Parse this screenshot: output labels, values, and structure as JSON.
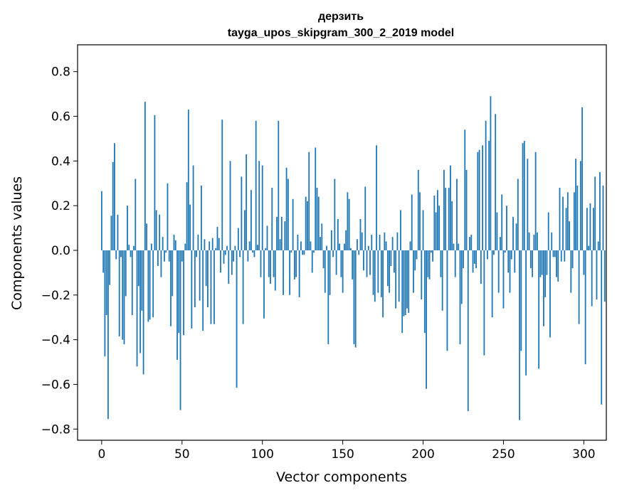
{
  "chart_data": {
    "type": "bar",
    "title_line1": "дерзить",
    "title_line2": "tayga_upos_skipgram_300_2_2019 model",
    "xlabel": "Vector components",
    "ylabel": "Components values",
    "xlim": [
      -15,
      314
    ],
    "ylim": [
      -0.85,
      0.92
    ],
    "xticks": [
      0,
      50,
      100,
      150,
      200,
      250,
      300
    ],
    "xtick_labels": [
      "0",
      "50",
      "100",
      "150",
      "200",
      "250",
      "300"
    ],
    "yticks": [
      -0.8,
      -0.6,
      -0.4,
      -0.2,
      0.0,
      0.2,
      0.4,
      0.6,
      0.8
    ],
    "ytick_labels": [
      "−0.8",
      "−0.6",
      "−0.4",
      "−0.2",
      "0.0",
      "0.2",
      "0.4",
      "0.6",
      "0.8"
    ],
    "bar_color": "#1f77b4",
    "values": [
      0.265,
      -0.1,
      -0.475,
      -0.29,
      -0.755,
      -0.155,
      0.155,
      0.395,
      0.48,
      -0.04,
      0.16,
      -0.385,
      -0.03,
      -0.4,
      -0.42,
      -0.205,
      0.2,
      0.025,
      -0.03,
      -0.29,
      0.02,
      0.32,
      -0.52,
      -0.16,
      -0.46,
      -0.27,
      -0.555,
      0.665,
      0.12,
      -0.32,
      -0.31,
      0.03,
      -0.3,
      0.605,
      0.18,
      -0.07,
      0.16,
      -0.12,
      0.06,
      -0.05,
      -0.01,
      0.3,
      -0.05,
      -0.34,
      -0.205,
      0.07,
      0.045,
      -0.49,
      -0.37,
      -0.715,
      -0.05,
      -0.38,
      0.03,
      0.305,
      0.63,
      0.205,
      -0.35,
      0.38,
      -0.255,
      -0.03,
      0.07,
      -0.225,
      0.29,
      -0.36,
      0.05,
      -0.16,
      -0.255,
      0.04,
      -0.33,
      0.055,
      -0.33,
      0.01,
      0.105,
      0.055,
      -0.1,
      0.585,
      -0.06,
      -0.02,
      0.02,
      -0.15,
      0.4,
      -0.11,
      -0.05,
      0.02,
      -0.615,
      0.1,
      -0.03,
      0.33,
      -0.33,
      0.18,
      0.43,
      -0.05,
      0.04,
      0.27,
      -0.01,
      -0.03,
      0.58,
      0.025,
      0.4,
      -0.12,
      0.38,
      -0.305,
      0.01,
      0.11,
      -0.12,
      -0.15,
      0.28,
      -0.12,
      -0.18,
      0.15,
      0.58,
      0.05,
      0.15,
      -0.2,
      0.13,
      0.37,
      0.32,
      -0.2,
      -0.01,
      0.23,
      -0.13,
      -0.12,
      0.07,
      -0.21,
      0.04,
      -0.02,
      -0.02,
      0.24,
      0.22,
      0.44,
      0.04,
      -0.1,
      -0.01,
      0.46,
      0.28,
      0.24,
      0.06,
      0.12,
      -0.08,
      -0.19,
      0.02,
      -0.42,
      -0.2,
      0.09,
      -0.03,
      0.32,
      -0.11,
      0.14,
      0.03,
      -0.12,
      -0.19,
      0.03,
      0.09,
      0.26,
      0.23,
      0.01,
      -0.13,
      -0.42,
      -0.435,
      0.05,
      -0.02,
      0.14,
      0.08,
      -0.09,
      0.285,
      -0.12,
      0.02,
      -0.11,
      0.07,
      -0.2,
      -0.23,
      0.47,
      -0.19,
      0.07,
      -0.21,
      -0.3,
      0.08,
      0.04,
      -0.16,
      -0.19,
      -0.07,
      0.06,
      -0.1,
      -0.26,
      0.08,
      -0.23,
      0.18,
      -0.37,
      -0.295,
      -0.29,
      -0.26,
      -0.28,
      0.04,
      0.25,
      -0.19,
      -0.09,
      -0.04,
      0.36,
      0.26,
      -0.22,
      0.18,
      -0.37,
      -0.62,
      -0.12,
      -0.13,
      -0.01,
      -0.05,
      0.245,
      0.17,
      0.27,
      0.2,
      -0.12,
      -0.27,
      0.36,
      0.28,
      -0.45,
      0.28,
      0.38,
      0.22,
      0.03,
      -0.12,
      0.32,
      0.03,
      -0.42,
      -0.24,
      -0.08,
      0.54,
      0.36,
      -0.72,
      0.06,
      0.07,
      -0.1,
      -0.06,
      -0.08,
      0.44,
      0.45,
      -0.15,
      0.47,
      -0.47,
      0.58,
      -0.04,
      0.49,
      0.69,
      -0.3,
      -0.02,
      0.61,
      0.17,
      -0.19,
      0.06,
      0.25,
      -0.26,
      -0.01,
      0.2,
      -0.1,
      -0.19,
      -0.04,
      0.15,
      -0.1,
      0.12,
      0.32,
      -0.76,
      -0.45,
      0.48,
      0.49,
      -0.56,
      0.41,
      0.08,
      -0.08,
      -0.12,
      0.07,
      0.44,
      0.08,
      -0.53,
      -0.12,
      -0.11,
      -0.34,
      -0.21,
      -0.11,
      0.17,
      -0.39,
      0.08,
      -0.03,
      -0.03,
      -0.12,
      -0.14,
      0.28,
      -0.05,
      0.24,
      -0.05,
      0.19,
      0.26,
      0.13,
      -0.19,
      -0.08,
      0.26,
      0.41,
      0.29,
      -0.33,
      0.4,
      0.64,
      -0.11,
      -0.51,
      0.19,
      0.02,
      0.21,
      -0.25,
      0.19,
      0.33,
      -0.22,
      0.04,
      0.35,
      -0.69,
      0.29,
      -0.23
    ]
  }
}
